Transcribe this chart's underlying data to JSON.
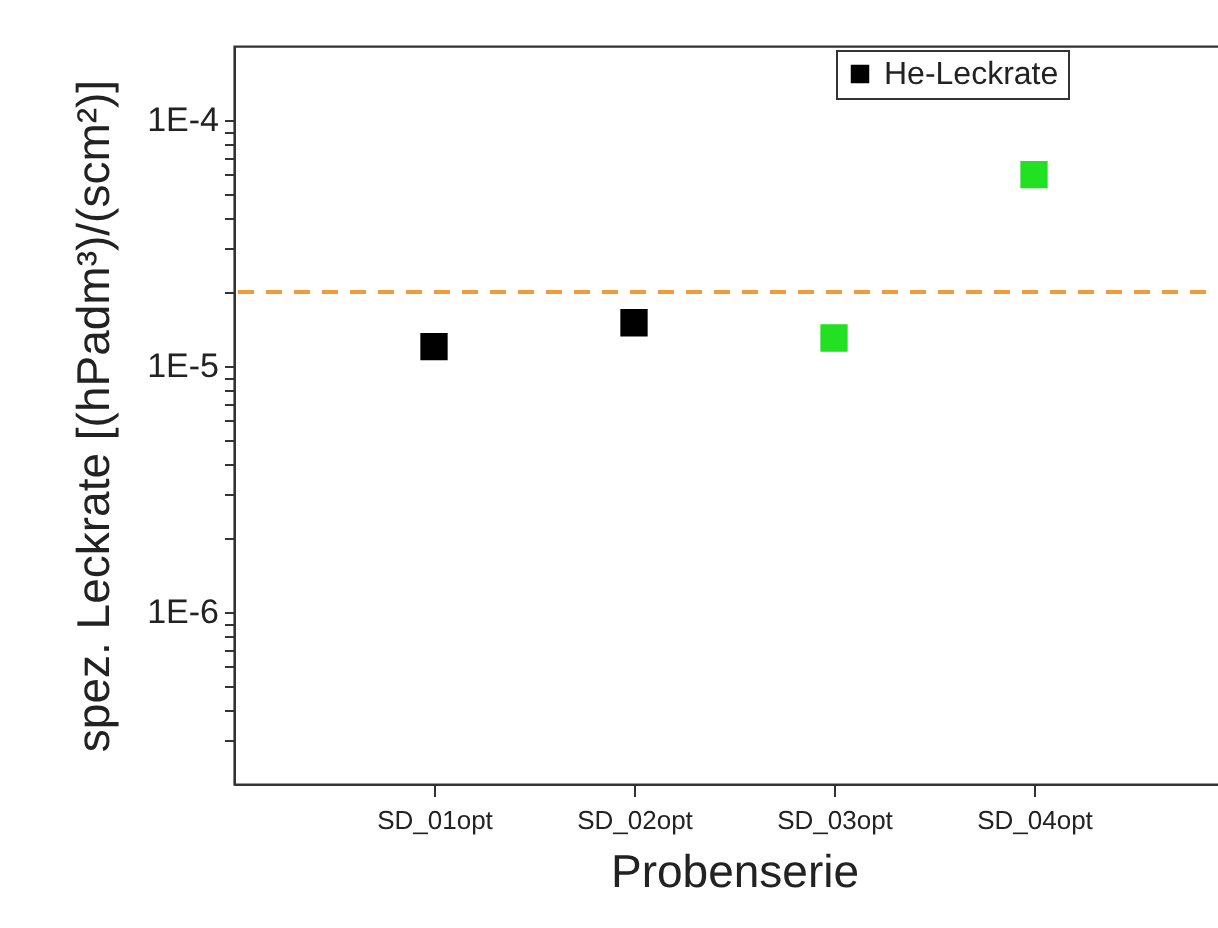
{
  "chart_data": {
    "type": "scatter",
    "xlabel": "Probenserie",
    "ylabel": "spez. Leckrate [(hPadm³)/(scm²)]",
    "categories": [
      "SD_01opt",
      "SD_02opt",
      "SD_03opt",
      "SD_04opt"
    ],
    "series": [
      {
        "name": "He-Leckrate",
        "color": "#000000",
        "colors": [
          "#000000",
          "#000000",
          "#22e022",
          "#22e022"
        ],
        "values": [
          1.2e-05,
          1.5e-05,
          1.3e-05,
          6e-05
        ]
      }
    ],
    "log": true,
    "ylim": [
      2e-07,
      0.0002
    ],
    "yticks": [
      {
        "value": 3e-07,
        "label": null
      },
      {
        "value": 4e-07,
        "label": null
      },
      {
        "value": 5e-07,
        "label": null
      },
      {
        "value": 6e-07,
        "label": null
      },
      {
        "value": 7e-07,
        "label": null
      },
      {
        "value": 8e-07,
        "label": null
      },
      {
        "value": 9e-07,
        "label": null
      },
      {
        "value": 1e-06,
        "label": "1E-6"
      },
      {
        "value": 2e-06,
        "label": null
      },
      {
        "value": 3e-06,
        "label": null
      },
      {
        "value": 4e-06,
        "label": null
      },
      {
        "value": 5e-06,
        "label": null
      },
      {
        "value": 6e-06,
        "label": null
      },
      {
        "value": 7e-06,
        "label": null
      },
      {
        "value": 8e-06,
        "label": null
      },
      {
        "value": 9e-06,
        "label": null
      },
      {
        "value": 1e-05,
        "label": "1E-5"
      },
      {
        "value": 2e-05,
        "label": null
      },
      {
        "value": 3e-05,
        "label": null
      },
      {
        "value": 4e-05,
        "label": null
      },
      {
        "value": 5e-05,
        "label": null
      },
      {
        "value": 6e-05,
        "label": null
      },
      {
        "value": 7e-05,
        "label": null
      },
      {
        "value": 8e-05,
        "label": null
      },
      {
        "value": 9e-05,
        "label": null
      },
      {
        "value": 0.0001,
        "label": "1E-4"
      }
    ],
    "ref_lines": [
      {
        "axis": "y",
        "value": 2e-05,
        "color": "#f39a3c",
        "line_style": "dashed"
      }
    ],
    "marker": "square",
    "legend": "top right",
    "grid": false
  }
}
